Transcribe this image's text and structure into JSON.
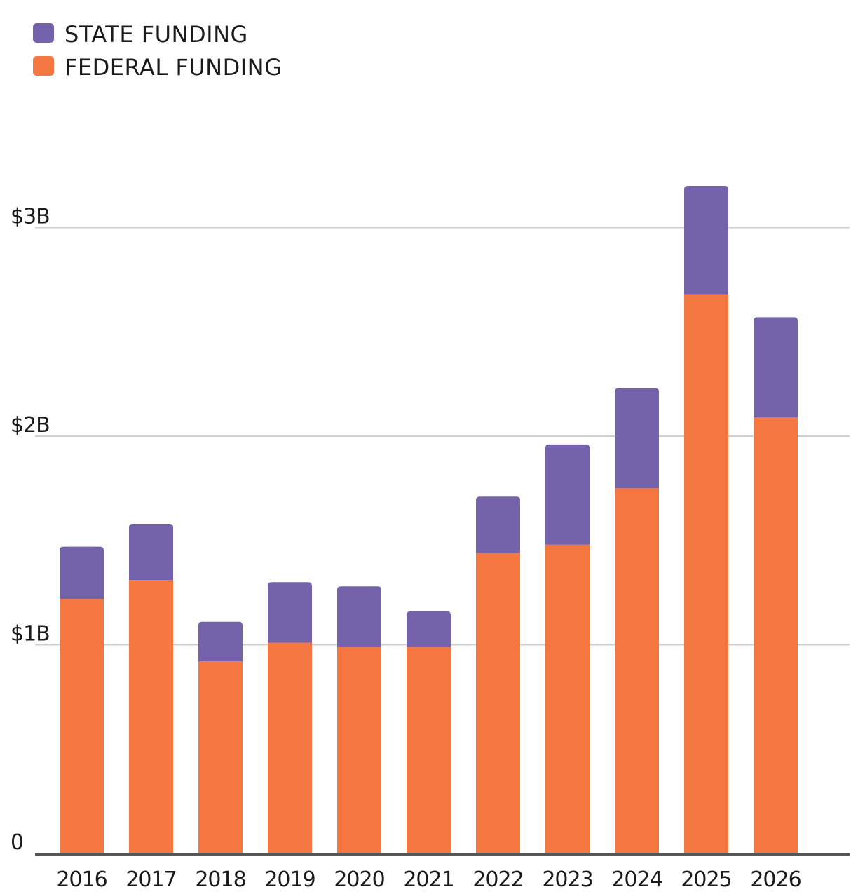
{
  "chart_data": {
    "type": "bar",
    "stacked": true,
    "categories": [
      "2016",
      "2017",
      "2018",
      "2019",
      "2020",
      "2021",
      "2022",
      "2023",
      "2024",
      "2025",
      "2026"
    ],
    "series": [
      {
        "name": "FEDERAL FUNDING",
        "color": "#F47741",
        "values": [
          1.22,
          1.31,
          0.92,
          1.01,
          0.99,
          0.99,
          1.44,
          1.48,
          1.75,
          2.68,
          2.09
        ]
      },
      {
        "name": "STATE FUNDING",
        "color": "#7463AA",
        "values": [
          0.25,
          0.27,
          0.19,
          0.29,
          0.29,
          0.17,
          0.27,
          0.48,
          0.48,
          0.52,
          0.48
        ]
      }
    ],
    "legend": {
      "position": "top-left",
      "items": [
        {
          "label": "STATE FUNDING",
          "color": "#7463AA"
        },
        {
          "label": "FEDERAL FUNDING",
          "color": "#F47741"
        }
      ]
    },
    "y_ticks": [
      {
        "value": 0,
        "label": "0"
      },
      {
        "value": 1,
        "label": "$1B"
      },
      {
        "value": 2,
        "label": "$2B"
      },
      {
        "value": 3,
        "label": "$3B"
      }
    ],
    "ylim": [
      0,
      3.5
    ],
    "grid": true,
    "title": "",
    "xlabel": "",
    "ylabel": ""
  }
}
